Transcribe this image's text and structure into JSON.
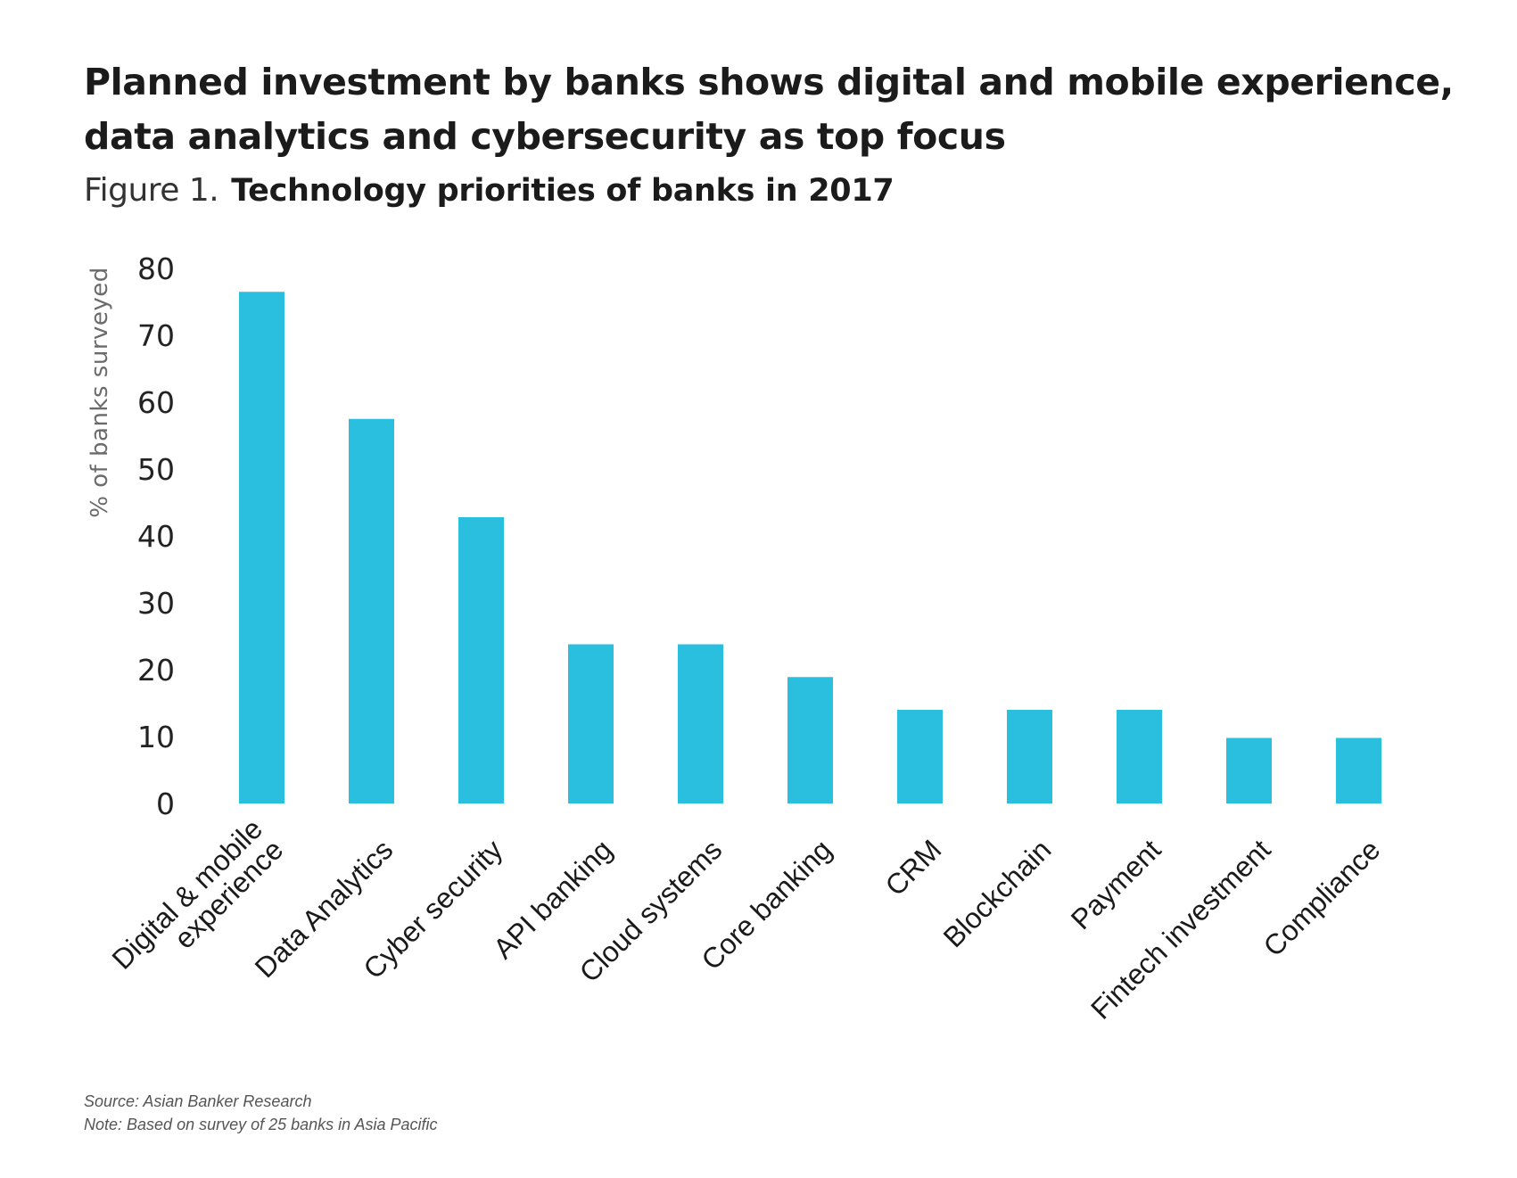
{
  "header": {
    "headline_line1": "Planned investment by banks shows digital and mobile experience,",
    "headline_line2": "data analytics and cybersecurity as top focus",
    "figure_label": "Figure 1.",
    "figure_title": "Technology priorities of banks in 2017"
  },
  "chart_data": {
    "type": "bar",
    "title": "Technology priorities of banks in 2017",
    "xlabel": "",
    "ylabel": "% of banks surveyed",
    "ylim": [
      0,
      80
    ],
    "yticks": [
      0,
      10,
      20,
      30,
      40,
      50,
      60,
      70,
      80
    ],
    "grid": false,
    "bar_color": "#2bbfdf",
    "categories": [
      [
        "Digital & mobile",
        "experience"
      ],
      [
        "Data Analytics"
      ],
      [
        "Cyber security"
      ],
      [
        "API banking"
      ],
      [
        "Cloud systems"
      ],
      [
        "Core banking"
      ],
      [
        "CRM"
      ],
      [
        "Blockchain"
      ],
      [
        "Payment"
      ],
      [
        "Fintech investment"
      ],
      [
        "Compliance"
      ]
    ],
    "values": [
      76.5,
      57.5,
      42.8,
      23.8,
      23.8,
      18.9,
      14,
      14,
      14,
      9.8,
      9.8
    ]
  },
  "footer": {
    "source": "Source: Asian Banker Research",
    "note": "Note: Based on survey of 25 banks in Asia Pacific"
  }
}
